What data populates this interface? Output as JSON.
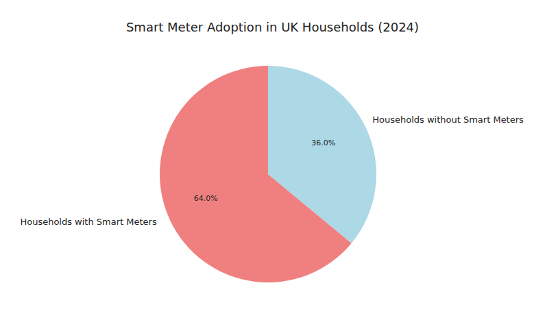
{
  "chart_data": {
    "type": "pie",
    "title": "Smart Meter Adoption in UK Households (2024)",
    "categories": [
      "Households with Smart Meters",
      "Households without Smart Meters"
    ],
    "values": [
      64,
      36
    ],
    "value_labels": [
      "64.0%",
      "36.0%"
    ],
    "colors": [
      "#f08080",
      "#add8e6"
    ],
    "data_labels": true
  }
}
